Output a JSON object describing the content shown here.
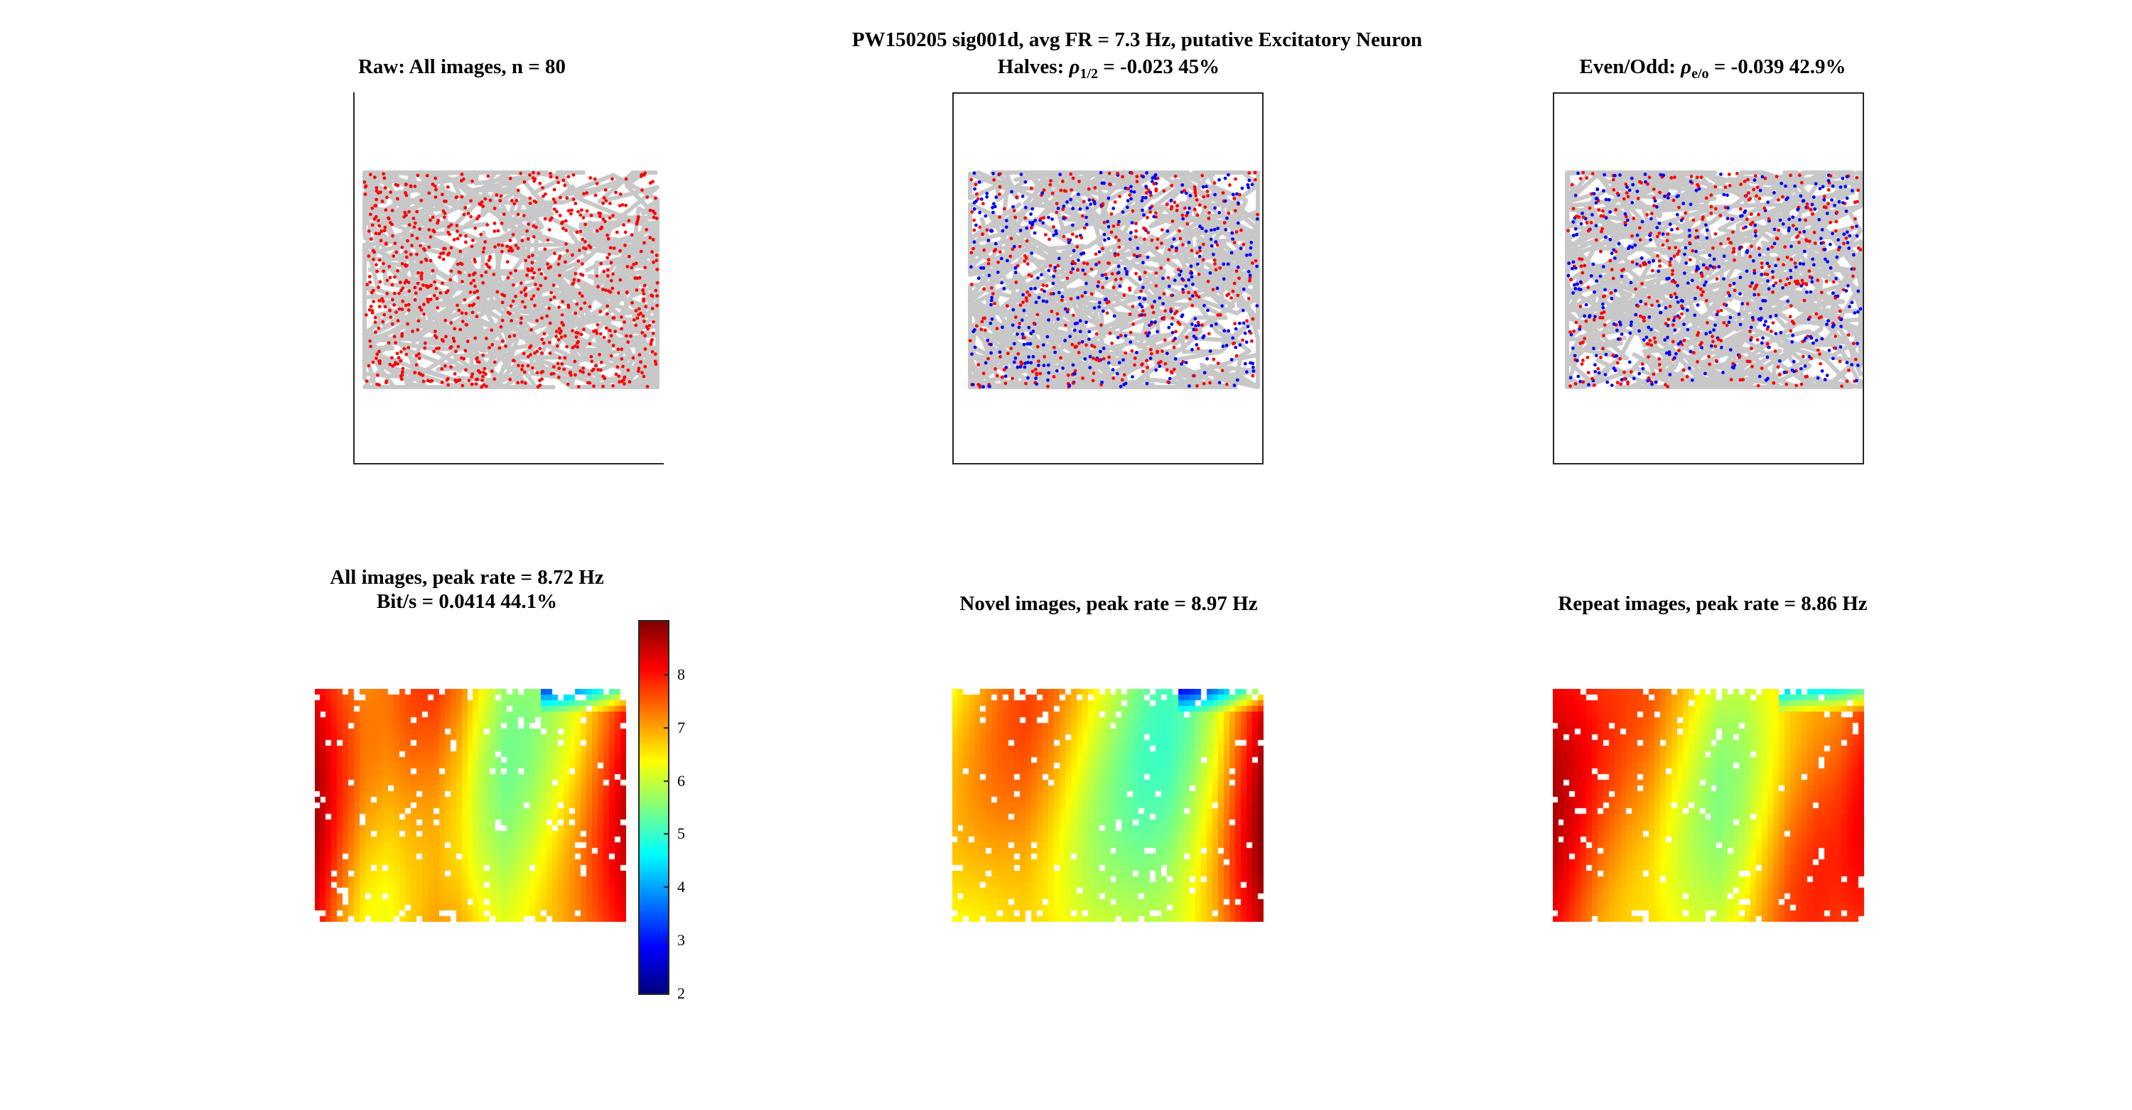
{
  "figure": {
    "suptitle": "PW150205  sig001d, avg FR = 7.3 Hz, putative Excitatory Neuron"
  },
  "panels": {
    "raw_title": "Raw: All images, n = 80",
    "halves_title_prefix": "Halves: ",
    "halves_rho_symbol": "ρ",
    "halves_rho_sub": "1/2",
    "halves_title_suffix": " = -0.023 45%",
    "evenodd_title_prefix": "Even/Odd: ",
    "evenodd_rho_symbol": "ρ",
    "evenodd_rho_sub": "e/o",
    "evenodd_title_suffix": " = -0.039 42.9%",
    "all_title_line1": "All images, peak rate = 8.72 Hz",
    "all_title_line2": "Bit/s = 0.0414 44.1%",
    "novel_title": "Novel images, peak rate = 8.97 Hz",
    "repeat_title": "Repeat images, peak rate = 8.86 Hz"
  },
  "colorbar": {
    "ticks": [
      "2",
      "3",
      "4",
      "5",
      "6",
      "7",
      "8"
    ],
    "min": 2,
    "max": 9
  },
  "colors": {
    "trajectory": "#c8c8c8",
    "spike_all": "#ff0000",
    "spike_first_half": "#0000ff",
    "spike_second_half": "#ff0000",
    "nan_bins": "#ffffff"
  },
  "chart_data": [
    {
      "type": "scatter",
      "title": "Raw: All images, n = 80",
      "series": [
        {
          "values": "spike positions over eye-trace trajectory",
          "color": "#ff0000"
        }
      ]
    },
    {
      "type": "scatter",
      "title": "Halves: ρ1/2 = -0.023 45%",
      "series": [
        {
          "color": "#0000ff"
        },
        {
          "color": "#ff0000"
        }
      ]
    },
    {
      "type": "scatter",
      "title": "Even/Odd: ρe/o = -0.039 42.9%",
      "series": [
        {
          "color": "#0000ff"
        },
        {
          "color": "#ff0000"
        }
      ]
    },
    {
      "type": "heatmap",
      "title": "All images, peak rate = 8.72 Hz",
      "subtitle": "Bit/s = 0.0414 44.1%",
      "peak_rate_hz": 8.72,
      "color_range": [
        2,
        9
      ],
      "colorbar_ticks": [
        2,
        3,
        4,
        5,
        6,
        7,
        8
      ],
      "x_profile": [
        8.4,
        7.6,
        7.0,
        7.0,
        7.4,
        7.6,
        7.3,
        6.6,
        6.1,
        6.2,
        6.5,
        6.9,
        7.5,
        8.2
      ]
    },
    {
      "type": "heatmap",
      "title": "Novel images, peak rate = 8.97 Hz",
      "peak_rate_hz": 8.97,
      "color_range": [
        2,
        9
      ],
      "x_profile": [
        6.6,
        6.9,
        7.2,
        7.4,
        7.2,
        6.8,
        6.4,
        6.1,
        5.8,
        5.7,
        6.0,
        6.6,
        7.6,
        8.6
      ]
    },
    {
      "type": "heatmap",
      "title": "Repeat images, peak rate = 8.86 Hz",
      "peak_rate_hz": 8.86,
      "color_range": [
        2,
        9
      ],
      "x_profile": [
        8.4,
        8.0,
        7.6,
        7.4,
        7.3,
        6.9,
        6.5,
        6.2,
        6.4,
        6.9,
        7.4,
        7.6,
        7.6,
        7.9
      ]
    }
  ]
}
